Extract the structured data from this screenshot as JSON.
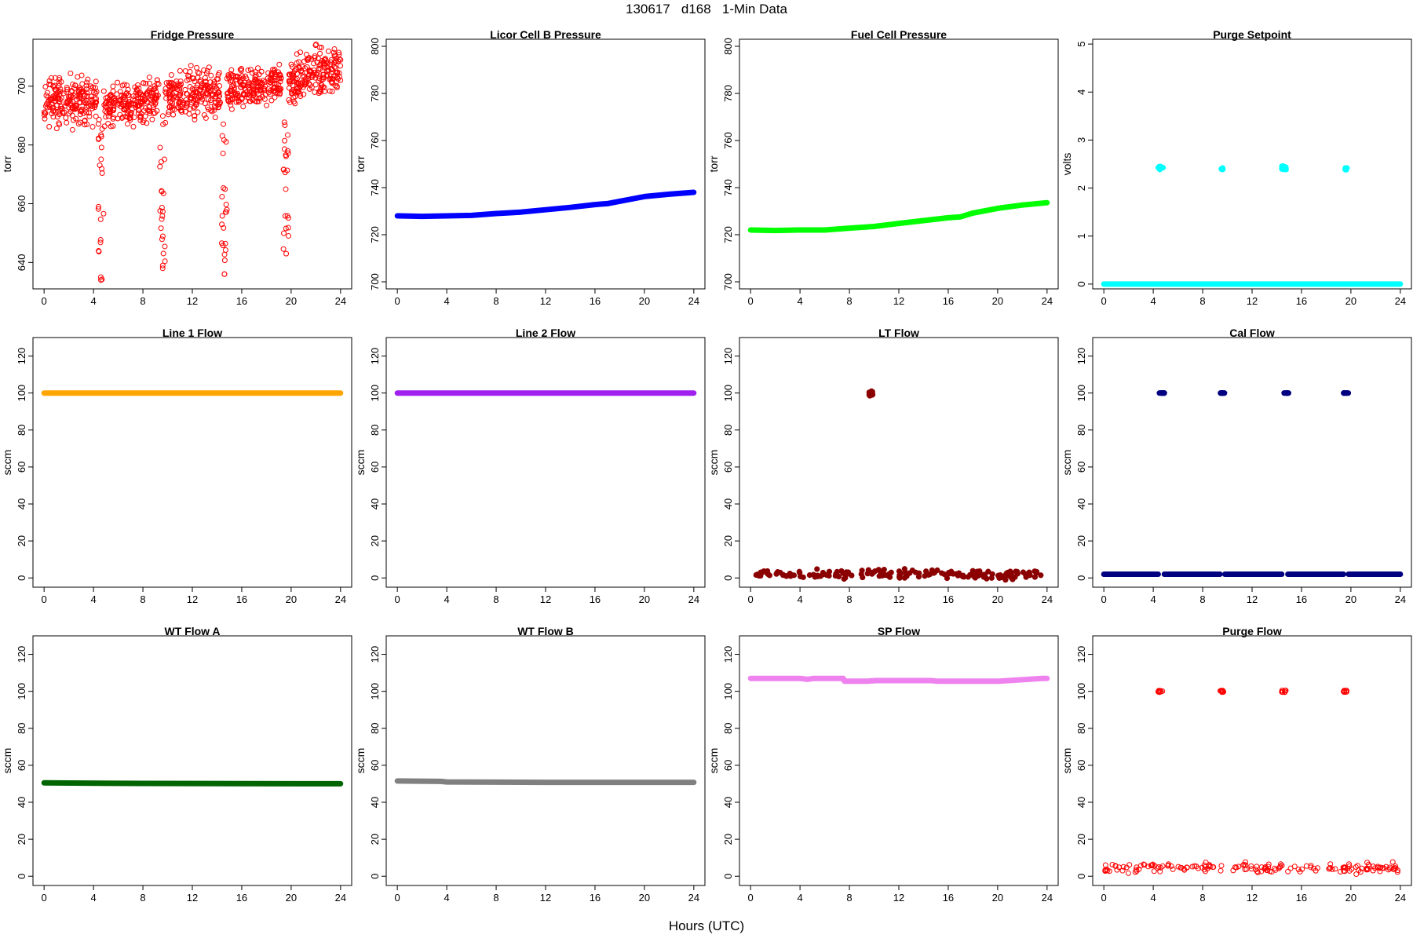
{
  "figure": {
    "title": "130617   d168   1-Min Data",
    "xlabel": "Hours (UTC)"
  },
  "chart_data": [
    {
      "type": "scatter",
      "title": "Fridge Pressure",
      "ylabel": "torr",
      "xlim": [
        -0.9,
        24.9
      ],
      "ylim": [
        631,
        716
      ],
      "xticks": [
        0,
        4,
        8,
        12,
        16,
        20,
        24
      ],
      "yticks": [
        640,
        660,
        680,
        700
      ],
      "color": "#ff0000",
      "marker": "open-circle",
      "grid": false,
      "series": [
        {
          "segments": [
            {
              "x": [
                0,
                4.3
              ],
              "y": [
                695,
                695
              ],
              "spread": 6
            },
            {
              "x": [
                4.8,
                9.3
              ],
              "y": [
                693,
                696
              ],
              "spread": 5
            },
            {
              "x": [
                9.8,
                14.3
              ],
              "y": [
                696,
                698
              ],
              "spread": 6
            },
            {
              "x": [
                14.8,
                19.3
              ],
              "y": [
                698,
                701
              ],
              "spread": 5
            },
            {
              "x": [
                19.8,
                24
              ],
              "y": [
                702,
                706
              ],
              "spread": 6
            }
          ]
        },
        {
          "dips": [
            {
              "x": 4.6,
              "min": 634
            },
            {
              "x": 9.6,
              "min": 638
            },
            {
              "x": 14.6,
              "min": 636
            },
            {
              "x": 19.6,
              "min": 643
            }
          ]
        }
      ]
    },
    {
      "type": "line",
      "title": "Licor Cell B Pressure",
      "ylabel": "torr",
      "xlim": [
        -0.9,
        24.9
      ],
      "ylim": [
        697,
        803
      ],
      "xticks": [
        0,
        4,
        8,
        12,
        16,
        20,
        24
      ],
      "yticks": [
        700,
        720,
        740,
        760,
        780,
        800
      ],
      "color": "#0000ff",
      "series": [
        {
          "x": [
            0,
            2,
            4,
            6,
            8,
            10,
            12,
            14,
            16,
            17,
            18,
            20,
            22,
            24
          ],
          "y": [
            728,
            727.8,
            728,
            728.2,
            729,
            729.6,
            730.6,
            731.6,
            732.8,
            733.2,
            734.2,
            736.2,
            737.2,
            738
          ]
        }
      ]
    },
    {
      "type": "line",
      "title": "Fuel Cell Pressure",
      "ylabel": "torr",
      "xlim": [
        -0.9,
        24.9
      ],
      "ylim": [
        697,
        803
      ],
      "xticks": [
        0,
        4,
        8,
        12,
        16,
        20,
        24
      ],
      "yticks": [
        700,
        720,
        740,
        760,
        780,
        800
      ],
      "color": "#00ff00",
      "series": [
        {
          "x": [
            0,
            2,
            4,
            6,
            8,
            10,
            12,
            14,
            16,
            17,
            18,
            20,
            22,
            24
          ],
          "y": [
            722,
            721.8,
            722,
            722,
            722.8,
            723.5,
            724.8,
            726,
            727.2,
            727.6,
            729.2,
            731.2,
            732.6,
            733.6
          ]
        }
      ]
    },
    {
      "type": "scatter",
      "title": "Purge Setpoint",
      "ylabel": "volts",
      "xlim": [
        -0.9,
        24.9
      ],
      "ylim": [
        -0.1,
        5.1
      ],
      "xticks": [
        0,
        4,
        8,
        12,
        16,
        20,
        24
      ],
      "yticks": [
        0,
        1,
        2,
        3,
        4,
        5
      ],
      "color": "#00ffff",
      "series": [
        {
          "segments": [
            {
              "x": [
                0,
                24
              ],
              "y": [
                0,
                0
              ],
              "spread": 0
            }
          ]
        },
        {
          "clusters": [
            {
              "x": [
                4.4,
                4.8
              ],
              "y": [
                2.38,
                2.46
              ]
            },
            {
              "x": [
                9.5,
                9.7
              ],
              "y": [
                2.38,
                2.42
              ]
            },
            {
              "x": [
                14.4,
                14.8
              ],
              "y": [
                2.38,
                2.46
              ]
            },
            {
              "x": [
                19.5,
                19.7
              ],
              "y": [
                2.38,
                2.42
              ]
            }
          ]
        }
      ]
    },
    {
      "type": "line",
      "title": "Line 1 Flow",
      "ylabel": "sccm",
      "xlim": [
        -0.9,
        24.9
      ],
      "ylim": [
        -5,
        130
      ],
      "xticks": [
        0,
        4,
        8,
        12,
        16,
        20,
        24
      ],
      "yticks": [
        0,
        20,
        40,
        60,
        80,
        100,
        120
      ],
      "color": "#ffa500",
      "series": [
        {
          "x": [
            0,
            24
          ],
          "y": [
            100,
            100
          ]
        }
      ]
    },
    {
      "type": "line",
      "title": "Line 2 Flow",
      "ylabel": "sccm",
      "xlim": [
        -0.9,
        24.9
      ],
      "ylim": [
        -5,
        130
      ],
      "xticks": [
        0,
        4,
        8,
        12,
        16,
        20,
        24
      ],
      "yticks": [
        0,
        20,
        40,
        60,
        80,
        100,
        120
      ],
      "color": "#a020f0",
      "series": [
        {
          "x": [
            0,
            24
          ],
          "y": [
            100,
            100
          ]
        }
      ]
    },
    {
      "type": "scatter",
      "title": "LT Flow",
      "ylabel": "sccm",
      "xlim": [
        -0.9,
        24.9
      ],
      "ylim": [
        -5,
        130
      ],
      "xticks": [
        0,
        4,
        8,
        12,
        16,
        20,
        24
      ],
      "yticks": [
        0,
        20,
        40,
        60,
        80,
        100,
        120
      ],
      "color": "#8b0000",
      "series": [
        {
          "segments": [
            {
              "x": [
                0,
                24
              ],
              "y": [
                2,
                2
              ],
              "spread": 2
            }
          ]
        },
        {
          "clusters": [
            {
              "x": [
                9.6,
                9.9
              ],
              "y": [
                98,
                101
              ]
            }
          ]
        }
      ]
    },
    {
      "type": "scatter",
      "title": "Cal Flow",
      "ylabel": "sccm",
      "xlim": [
        -0.9,
        24.9
      ],
      "ylim": [
        -5,
        130
      ],
      "xticks": [
        0,
        4,
        8,
        12,
        16,
        20,
        24
      ],
      "yticks": [
        0,
        20,
        40,
        60,
        80,
        100,
        120
      ],
      "color": "#000080",
      "series": [
        {
          "segments": [
            {
              "x": [
                0,
                4.4
              ],
              "y": [
                2,
                2
              ],
              "spread": 0
            },
            {
              "x": [
                4.9,
                9.4
              ],
              "y": [
                2,
                2
              ],
              "spread": 0
            },
            {
              "x": [
                9.8,
                14.4
              ],
              "y": [
                2,
                2
              ],
              "spread": 0
            },
            {
              "x": [
                14.9,
                19.4
              ],
              "y": [
                2,
                2
              ],
              "spread": 0
            },
            {
              "x": [
                19.8,
                24
              ],
              "y": [
                2,
                2
              ],
              "spread": 0
            }
          ]
        },
        {
          "clusters": [
            {
              "x": [
                4.5,
                5.0
              ],
              "y": [
                100,
                100
              ]
            },
            {
              "x": [
                9.4,
                9.8
              ],
              "y": [
                100,
                100
              ]
            },
            {
              "x": [
                14.5,
                15.0
              ],
              "y": [
                100,
                100
              ]
            },
            {
              "x": [
                19.4,
                19.8
              ],
              "y": [
                100,
                100
              ]
            }
          ]
        }
      ]
    },
    {
      "type": "line",
      "title": "WT Flow A",
      "ylabel": "sccm",
      "xlim": [
        -0.9,
        24.9
      ],
      "ylim": [
        -5,
        130
      ],
      "xticks": [
        0,
        4,
        8,
        12,
        16,
        20,
        24
      ],
      "yticks": [
        0,
        20,
        40,
        60,
        80,
        100,
        120
      ],
      "color": "#006400",
      "series": [
        {
          "x": [
            0,
            8,
            16,
            24
          ],
          "y": [
            50.5,
            50.2,
            50.1,
            50
          ]
        }
      ]
    },
    {
      "type": "line",
      "title": "WT Flow B",
      "ylabel": "sccm",
      "xlim": [
        -0.9,
        24.9
      ],
      "ylim": [
        -5,
        130
      ],
      "xticks": [
        0,
        4,
        8,
        12,
        16,
        20,
        24
      ],
      "yticks": [
        0,
        20,
        40,
        60,
        80,
        100,
        120
      ],
      "color": "#808080",
      "series": [
        {
          "x": [
            0,
            3.5,
            4,
            12,
            24
          ],
          "y": [
            51.5,
            51.3,
            51,
            50.8,
            50.8
          ]
        }
      ]
    },
    {
      "type": "line",
      "title": "SP Flow",
      "ylabel": "sccm",
      "xlim": [
        -0.9,
        24.9
      ],
      "ylim": [
        -5,
        130
      ],
      "xticks": [
        0,
        4,
        8,
        12,
        16,
        20,
        24
      ],
      "yticks": [
        0,
        20,
        40,
        60,
        80,
        100,
        120
      ],
      "color": "#ee82ee",
      "series": [
        {
          "x": [
            0,
            4,
            4.6,
            5.1,
            7.5,
            7.6,
            9.5,
            10.1,
            14.6,
            15.1,
            19.7,
            20.1,
            23.6,
            24
          ],
          "y": [
            107,
            107,
            106.5,
            107,
            107,
            105.5,
            105.5,
            105.8,
            105.8,
            105.5,
            105.5,
            105.5,
            107,
            107
          ]
        }
      ]
    },
    {
      "type": "scatter",
      "title": "Purge Flow",
      "ylabel": "sccm",
      "xlim": [
        -0.9,
        24.9
      ],
      "ylim": [
        -5,
        130
      ],
      "xticks": [
        0,
        4,
        8,
        12,
        16,
        20,
        24
      ],
      "yticks": [
        0,
        20,
        40,
        60,
        80,
        100,
        120
      ],
      "color": "#ff0000",
      "marker": "open-circle",
      "series": [
        {
          "segments": [
            {
              "x": [
                0,
                24
              ],
              "y": [
                4.5,
                4.5
              ],
              "spread": 2
            }
          ]
        },
        {
          "clusters": [
            {
              "x": [
                4.4,
                4.8
              ],
              "y": [
                99.5,
                100.5
              ]
            },
            {
              "x": [
                9.4,
                9.7
              ],
              "y": [
                99.5,
                100.5
              ]
            },
            {
              "x": [
                14.4,
                14.8
              ],
              "y": [
                99.5,
                100.5
              ]
            },
            {
              "x": [
                19.4,
                19.7
              ],
              "y": [
                99.5,
                100.5
              ]
            }
          ]
        }
      ]
    }
  ]
}
